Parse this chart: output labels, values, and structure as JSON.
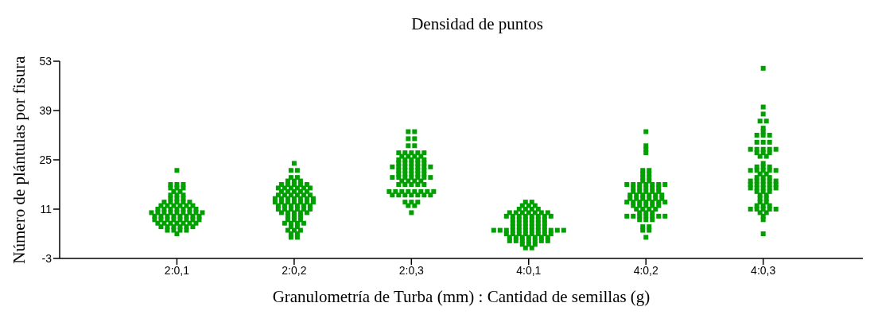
{
  "chart_data": {
    "type": "scatter",
    "title": "Densidad de puntos",
    "xlabel": "Granulometría de Turba (mm) : Cantidad de semillas (g)",
    "ylabel": "Número de plántulas por fisura",
    "categories": [
      "2:0,1",
      "2:0,2",
      "2:0,3",
      "4:0,1",
      "4:0,2",
      "4:0,3"
    ],
    "ylim": [
      -3,
      53
    ],
    "yticks": [
      -3,
      11,
      25,
      39,
      53
    ],
    "grid": false,
    "legend": false,
    "marker": "square",
    "series": [
      {
        "color": "#00a000",
        "x": [
          "2:0,1",
          "2:0,1",
          "2:0,1",
          "2:0,1",
          "2:0,1",
          "2:0,1",
          "2:0,1",
          "2:0,1",
          "2:0,1",
          "2:0,1",
          "2:0,1",
          "2:0,1",
          "2:0,1",
          "2:0,1",
          "2:0,1",
          "2:0,1",
          "2:0,1",
          "2:0,1",
          "2:0,1",
          "2:0,1",
          "2:0,1",
          "2:0,1",
          "2:0,1",
          "2:0,1",
          "2:0,1",
          "2:0,1",
          "2:0,1",
          "2:0,1",
          "2:0,1",
          "2:0,1",
          "2:0,1",
          "2:0,1",
          "2:0,1",
          "2:0,1",
          "2:0,1",
          "2:0,1",
          "2:0,1",
          "2:0,1",
          "2:0,1",
          "2:0,1",
          "2:0,1",
          "2:0,1",
          "2:0,1",
          "2:0,1",
          "2:0,1",
          "2:0,1",
          "2:0,1",
          "2:0,1",
          "2:0,1",
          "2:0,1",
          "2:0,1",
          "2:0,1",
          "2:0,1",
          "2:0,1",
          "2:0,1",
          "2:0,1",
          "2:0,1",
          "2:0,1",
          "2:0,1",
          "2:0,1",
          "2:0,1",
          "2:0,1",
          "2:0,1",
          "2:0,1",
          "2:0,1",
          "2:0,1",
          "2:0,1",
          "2:0,1",
          "2:0,1",
          "2:0,1",
          "2:0,1",
          "2:0,1",
          "2:0,1",
          "2:0,1",
          "2:0,1",
          "2:0,1",
          "2:0,2",
          "2:0,2",
          "2:0,2",
          "2:0,2",
          "2:0,2",
          "2:0,2",
          "2:0,2",
          "2:0,2",
          "2:0,2",
          "2:0,2",
          "2:0,2",
          "2:0,2",
          "2:0,2",
          "2:0,2",
          "2:0,2",
          "2:0,2",
          "2:0,2",
          "2:0,2",
          "2:0,2",
          "2:0,2",
          "2:0,2",
          "2:0,2",
          "2:0,2",
          "2:0,2",
          "2:0,2",
          "2:0,2",
          "2:0,2",
          "2:0,2",
          "2:0,2",
          "2:0,2",
          "2:0,2",
          "2:0,2",
          "2:0,2",
          "2:0,2",
          "2:0,2",
          "2:0,2",
          "2:0,2",
          "2:0,2",
          "2:0,2",
          "2:0,2",
          "2:0,2",
          "2:0,2",
          "2:0,2",
          "2:0,2",
          "2:0,2",
          "2:0,2",
          "2:0,2",
          "2:0,2",
          "2:0,2",
          "2:0,2",
          "2:0,2",
          "2:0,2",
          "2:0,2",
          "2:0,2",
          "2:0,2",
          "2:0,2",
          "2:0,2",
          "2:0,2",
          "2:0,2",
          "2:0,2",
          "2:0,2",
          "2:0,2",
          "2:0,2",
          "2:0,2",
          "2:0,2",
          "2:0,2",
          "2:0,2",
          "2:0,2",
          "2:0,2",
          "2:0,2",
          "2:0,2",
          "2:0,2",
          "2:0,2",
          "2:0,2",
          "2:0,2",
          "2:0,2",
          "2:0,2",
          "2:0,2",
          "2:0,2",
          "2:0,2",
          "2:0,3",
          "2:0,3",
          "2:0,3",
          "2:0,3",
          "2:0,3",
          "2:0,3",
          "2:0,3",
          "2:0,3",
          "2:0,3",
          "2:0,3",
          "2:0,3",
          "2:0,3",
          "2:0,3",
          "2:0,3",
          "2:0,3",
          "2:0,3",
          "2:0,3",
          "2:0,3",
          "2:0,3",
          "2:0,3",
          "2:0,3",
          "2:0,3",
          "2:0,3",
          "2:0,3",
          "2:0,3",
          "2:0,3",
          "2:0,3",
          "2:0,3",
          "2:0,3",
          "2:0,3",
          "2:0,3",
          "2:0,3",
          "2:0,3",
          "2:0,3",
          "2:0,3",
          "2:0,3",
          "2:0,3",
          "2:0,3",
          "2:0,3",
          "2:0,3",
          "2:0,3",
          "2:0,3",
          "2:0,3",
          "2:0,3",
          "2:0,3",
          "2:0,3",
          "2:0,3",
          "2:0,3",
          "2:0,3",
          "2:0,3",
          "2:0,3",
          "2:0,3",
          "2:0,3",
          "2:0,3",
          "2:0,3",
          "2:0,3",
          "2:0,3",
          "2:0,3",
          "2:0,3",
          "2:0,3",
          "2:0,3",
          "2:0,3",
          "2:0,3",
          "2:0,3",
          "2:0,3",
          "2:0,3",
          "2:0,3",
          "2:0,3",
          "2:0,3",
          "2:0,3",
          "2:0,3",
          "2:0,3",
          "2:0,3",
          "2:0,3",
          "2:0,3",
          "2:0,3",
          "2:0,3",
          "2:0,3",
          "2:0,3",
          "4:0,1",
          "4:0,1",
          "4:0,1",
          "4:0,1",
          "4:0,1",
          "4:0,1",
          "4:0,1",
          "4:0,1",
          "4:0,1",
          "4:0,1",
          "4:0,1",
          "4:0,1",
          "4:0,1",
          "4:0,1",
          "4:0,1",
          "4:0,1",
          "4:0,1",
          "4:0,1",
          "4:0,1",
          "4:0,1",
          "4:0,1",
          "4:0,1",
          "4:0,1",
          "4:0,1",
          "4:0,1",
          "4:0,1",
          "4:0,1",
          "4:0,1",
          "4:0,1",
          "4:0,1",
          "4:0,1",
          "4:0,1",
          "4:0,1",
          "4:0,1",
          "4:0,1",
          "4:0,1",
          "4:0,1",
          "4:0,1",
          "4:0,1",
          "4:0,1",
          "4:0,1",
          "4:0,1",
          "4:0,1",
          "4:0,1",
          "4:0,1",
          "4:0,1",
          "4:0,1",
          "4:0,1",
          "4:0,1",
          "4:0,1",
          "4:0,1",
          "4:0,1",
          "4:0,1",
          "4:0,1",
          "4:0,1",
          "4:0,1",
          "4:0,1",
          "4:0,1",
          "4:0,1",
          "4:0,1",
          "4:0,1",
          "4:0,1",
          "4:0,1",
          "4:0,1",
          "4:0,1",
          "4:0,1",
          "4:0,1",
          "4:0,1",
          "4:0,1",
          "4:0,1",
          "4:0,1",
          "4:0,1",
          "4:0,1",
          "4:0,1",
          "4:0,1",
          "4:0,1",
          "4:0,1",
          "4:0,1",
          "4:0,1",
          "4:0,1",
          "4:0,1",
          "4:0,2",
          "4:0,2",
          "4:0,2",
          "4:0,2",
          "4:0,2",
          "4:0,2",
          "4:0,2",
          "4:0,2",
          "4:0,2",
          "4:0,2",
          "4:0,2",
          "4:0,2",
          "4:0,2",
          "4:0,2",
          "4:0,2",
          "4:0,2",
          "4:0,2",
          "4:0,2",
          "4:0,2",
          "4:0,2",
          "4:0,2",
          "4:0,2",
          "4:0,2",
          "4:0,2",
          "4:0,2",
          "4:0,2",
          "4:0,2",
          "4:0,2",
          "4:0,2",
          "4:0,2",
          "4:0,2",
          "4:0,2",
          "4:0,2",
          "4:0,2",
          "4:0,2",
          "4:0,2",
          "4:0,2",
          "4:0,2",
          "4:0,2",
          "4:0,2",
          "4:0,2",
          "4:0,2",
          "4:0,2",
          "4:0,2",
          "4:0,2",
          "4:0,2",
          "4:0,2",
          "4:0,2",
          "4:0,2",
          "4:0,2",
          "4:0,2",
          "4:0,2",
          "4:0,2",
          "4:0,2",
          "4:0,2",
          "4:0,2",
          "4:0,2",
          "4:0,2",
          "4:0,2",
          "4:0,2",
          "4:0,2",
          "4:0,2",
          "4:0,2",
          "4:0,2",
          "4:0,2",
          "4:0,2",
          "4:0,2",
          "4:0,2",
          "4:0,2",
          "4:0,2",
          "4:0,2",
          "4:0,2",
          "4:0,2",
          "4:0,2",
          "4:0,2",
          "4:0,3",
          "4:0,3",
          "4:0,3",
          "4:0,3",
          "4:0,3",
          "4:0,3",
          "4:0,3",
          "4:0,3",
          "4:0,3",
          "4:0,3",
          "4:0,3",
          "4:0,3",
          "4:0,3",
          "4:0,3",
          "4:0,3",
          "4:0,3",
          "4:0,3",
          "4:0,3",
          "4:0,3",
          "4:0,3",
          "4:0,3",
          "4:0,3",
          "4:0,3",
          "4:0,3",
          "4:0,3",
          "4:0,3",
          "4:0,3",
          "4:0,3",
          "4:0,3",
          "4:0,3",
          "4:0,3",
          "4:0,3",
          "4:0,3",
          "4:0,3",
          "4:0,3",
          "4:0,3",
          "4:0,3",
          "4:0,3",
          "4:0,3",
          "4:0,3",
          "4:0,3",
          "4:0,3",
          "4:0,3",
          "4:0,3",
          "4:0,3",
          "4:0,3",
          "4:0,3",
          "4:0,3",
          "4:0,3",
          "4:0,3",
          "4:0,3",
          "4:0,3",
          "4:0,3",
          "4:0,3",
          "4:0,3",
          "4:0,3",
          "4:0,3",
          "4:0,3",
          "4:0,3",
          "4:0,3",
          "4:0,3",
          "4:0,3",
          "4:0,3",
          "4:0,3",
          "4:0,3",
          "4:0,3",
          "4:0,3",
          "4:0,3",
          "4:0,3",
          "4:0,3",
          "4:0,3",
          "4:0,3",
          "4:0,3",
          "4:0,3"
        ],
        "values": [
          4,
          5,
          5,
          5,
          5,
          6,
          6,
          6,
          6,
          6,
          6,
          7,
          7,
          7,
          7,
          7,
          7,
          7,
          8,
          8,
          8,
          8,
          8,
          8,
          8,
          8,
          9,
          9,
          9,
          9,
          9,
          9,
          9,
          9,
          10,
          10,
          10,
          10,
          10,
          10,
          10,
          10,
          10,
          11,
          11,
          11,
          11,
          11,
          11,
          11,
          12,
          12,
          12,
          12,
          12,
          12,
          13,
          13,
          13,
          13,
          13,
          14,
          14,
          14,
          15,
          15,
          15,
          16,
          16,
          17,
          17,
          17,
          18,
          18,
          18,
          22,
          3,
          3,
          4,
          4,
          5,
          5,
          5,
          6,
          6,
          7,
          7,
          7,
          7,
          8,
          8,
          8,
          9,
          9,
          9,
          10,
          10,
          10,
          10,
          10,
          11,
          11,
          11,
          11,
          11,
          11,
          12,
          12,
          12,
          12,
          12,
          12,
          13,
          13,
          13,
          13,
          13,
          13,
          13,
          14,
          14,
          14,
          14,
          14,
          14,
          14,
          15,
          15,
          15,
          15,
          15,
          15,
          16,
          16,
          16,
          16,
          16,
          17,
          17,
          17,
          17,
          17,
          17,
          18,
          18,
          18,
          18,
          18,
          19,
          19,
          19,
          20,
          20,
          22,
          22,
          24,
          10,
          12,
          12,
          13,
          13,
          13,
          15,
          15,
          15,
          15,
          15,
          15,
          15,
          16,
          16,
          16,
          16,
          16,
          16,
          16,
          16,
          18,
          18,
          18,
          18,
          18,
          19,
          19,
          19,
          19,
          20,
          20,
          20,
          20,
          20,
          20,
          20,
          21,
          21,
          21,
          21,
          21,
          22,
          22,
          22,
          22,
          22,
          23,
          23,
          23,
          23,
          23,
          23,
          23,
          24,
          24,
          24,
          24,
          24,
          25,
          25,
          25,
          25,
          25,
          26,
          26,
          26,
          26,
          27,
          27,
          27,
          27,
          27,
          29,
          29,
          31,
          31,
          33,
          33,
          0,
          0,
          1,
          1,
          1,
          2,
          2,
          2,
          2,
          2,
          2,
          2,
          3,
          3,
          3,
          3,
          3,
          3,
          3,
          4,
          4,
          4,
          4,
          4,
          4,
          4,
          4,
          5,
          5,
          5,
          5,
          5,
          5,
          5,
          5,
          5,
          5,
          5,
          5,
          6,
          6,
          6,
          6,
          6,
          6,
          7,
          7,
          7,
          7,
          7,
          7,
          8,
          8,
          8,
          8,
          8,
          8,
          9,
          9,
          9,
          9,
          9,
          9,
          9,
          9,
          10,
          10,
          10,
          10,
          10,
          10,
          10,
          11,
          11,
          11,
          11,
          12,
          12,
          12,
          13,
          13,
          3,
          5,
          5,
          6,
          6,
          8,
          8,
          8,
          9,
          9,
          9,
          9,
          9,
          9,
          9,
          10,
          10,
          10,
          11,
          11,
          11,
          11,
          12,
          12,
          12,
          12,
          12,
          13,
          13,
          13,
          13,
          13,
          13,
          13,
          14,
          14,
          14,
          14,
          14,
          14,
          15,
          15,
          15,
          15,
          15,
          15,
          16,
          16,
          16,
          16,
          16,
          17,
          17,
          17,
          17,
          17,
          18,
          18,
          18,
          18,
          18,
          18,
          18,
          19,
          19,
          20,
          20,
          21,
          21,
          22,
          22,
          27,
          28,
          29,
          33,
          4,
          8,
          9,
          10,
          10,
          11,
          11,
          11,
          11,
          11,
          12,
          12,
          12,
          13,
          13,
          14,
          14,
          15,
          15,
          16,
          16,
          16,
          17,
          17,
          17,
          17,
          17,
          18,
          18,
          18,
          18,
          18,
          19,
          19,
          19,
          19,
          19,
          20,
          20,
          20,
          21,
          21,
          22,
          22,
          22,
          22,
          22,
          23,
          23,
          23,
          24,
          26,
          26,
          27,
          27,
          27,
          28,
          28,
          28,
          28,
          28,
          30,
          30,
          30,
          32,
          32,
          32,
          33,
          34,
          36,
          36,
          38,
          40,
          51
        ]
      }
    ]
  }
}
